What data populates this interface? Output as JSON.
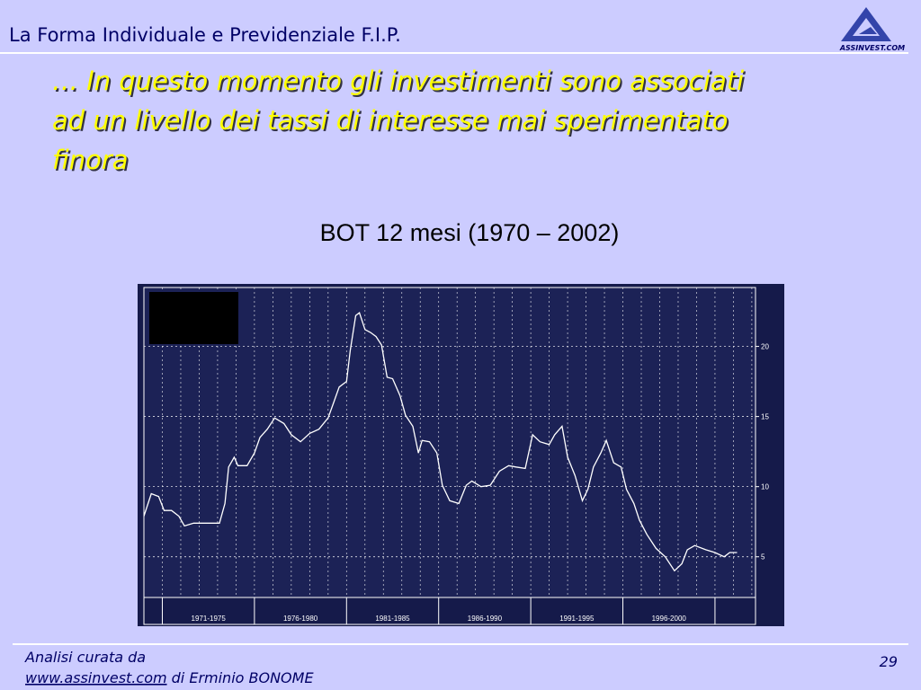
{
  "header": {
    "title": "La Forma  Individuale e Previdenziale  F.I.P.",
    "logo": "ASSINVEST.COM"
  },
  "heading": [
    "… In questo momento  gli investimenti  sono associati",
    "ad un livello dei tassi di interesse mai sperimentato",
    "finora"
  ],
  "chart_data": {
    "type": "line",
    "title": "BOT 12 mesi (1970 – 2002)",
    "x": [
      1970.0,
      1970.4,
      1970.8,
      1971.1,
      1971.5,
      1971.9,
      1972.2,
      1972.7,
      1973.4,
      1974.1,
      1974.4,
      1974.6,
      1974.9,
      1975.1,
      1975.6,
      1976.0,
      1976.3,
      1976.7,
      1977.1,
      1977.6,
      1978.0,
      1978.5,
      1979.0,
      1979.5,
      1980.0,
      1980.3,
      1980.6,
      1981.0,
      1981.2,
      1981.5,
      1981.7,
      1982.0,
      1982.3,
      1982.6,
      1982.9,
      1983.2,
      1983.5,
      1983.9,
      1984.2,
      1984.6,
      1984.9,
      1985.1,
      1985.5,
      1985.9,
      1986.2,
      1986.6,
      1987.1,
      1987.5,
      1987.8,
      1988.3,
      1988.8,
      1989.3,
      1989.8,
      1990.2,
      1990.7,
      1991.1,
      1991.5,
      1992.0,
      1992.3,
      1992.7,
      1993.0,
      1993.4,
      1993.8,
      1994.1,
      1994.4,
      1994.8,
      1995.1,
      1995.5,
      1995.9,
      1996.2,
      1996.6,
      1996.9,
      1997.3,
      1997.8,
      1998.3,
      1998.8,
      1999.2,
      1999.5,
      1999.9,
      2000.5,
      2001.0,
      2001.5,
      2001.8,
      2002.2
    ],
    "series": [
      {
        "color": "#ffffff",
        "values": [
          7.9,
          9.5,
          9.3,
          8.3,
          8.3,
          7.9,
          7.2,
          7.4,
          7.4,
          7.4,
          8.8,
          11.4,
          12.1,
          11.5,
          11.5,
          12.4,
          13.5,
          14.1,
          14.9,
          14.5,
          13.7,
          13.2,
          13.8,
          14.1,
          14.9,
          16.0,
          17.1,
          17.5,
          19.7,
          22.2,
          22.4,
          21.2,
          21.0,
          20.7,
          20.1,
          17.8,
          17.7,
          16.5,
          15.1,
          14.3,
          12.4,
          13.3,
          13.2,
          12.4,
          10.1,
          9.0,
          8.8,
          10.1,
          10.4,
          10.0,
          10.1,
          11.1,
          11.5,
          11.4,
          11.3,
          13.7,
          13.2,
          13.0,
          13.7,
          14.3,
          12.1,
          10.8,
          9.0,
          9.8,
          11.4,
          12.4,
          13.3,
          11.7,
          11.4,
          9.8,
          8.8,
          7.6,
          6.6,
          5.6,
          5.0,
          4.0,
          4.5,
          5.5,
          5.8,
          5.5,
          5.3,
          5.0,
          5.3,
          5.3
        ]
      }
    ],
    "xlim": [
      1970,
      2003.2
    ],
    "ylim": [
      2.1,
      24.2
    ],
    "yticks": [
      5,
      10,
      15,
      20
    ],
    "xticks": [
      {
        "value": 1973.5,
        "label": "1971-1975"
      },
      {
        "value": 1978.5,
        "label": "1976-1980"
      },
      {
        "value": 1983.5,
        "label": "1981-1985"
      },
      {
        "value": 1988.5,
        "label": "1986-1990"
      },
      {
        "value": 1993.5,
        "label": "1991-1995"
      },
      {
        "value": 1998.5,
        "label": "1996-2000"
      }
    ],
    "grid": true
  },
  "footer": {
    "credit": "Analisi  curata da",
    "link": "www.assinvest.com",
    "author": " di Erminio BONOME",
    "page": "29"
  }
}
